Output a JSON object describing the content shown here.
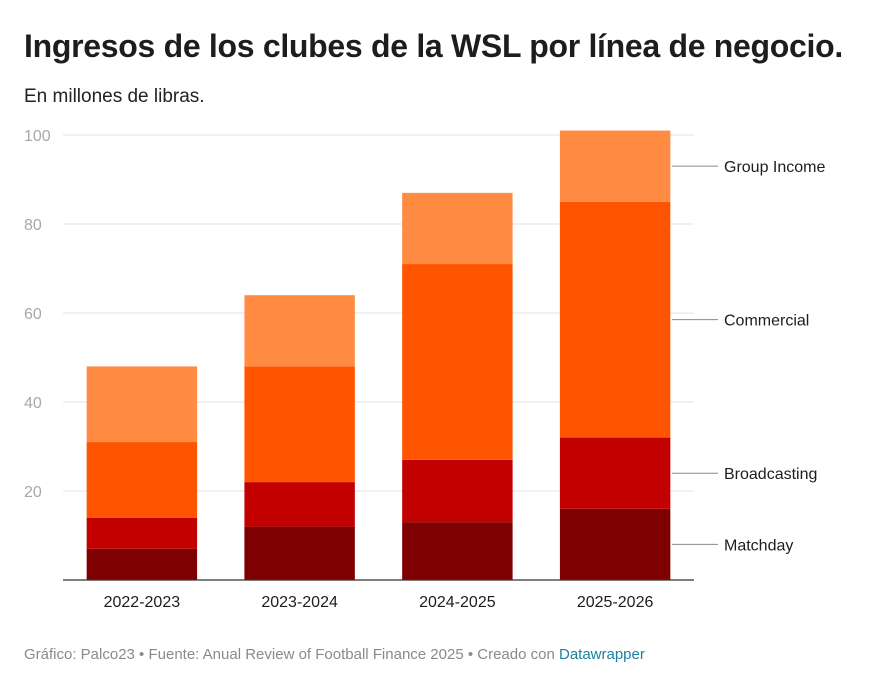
{
  "title": "Ingresos de los clubes de la WSL por línea de negocio.",
  "subtitle": "En millones de libras.",
  "footer": {
    "text": "Gráfico: Palco23 • Fuente: Anual Review of Football Finance 2025 • Creado con ",
    "link_text": "Datawrapper"
  },
  "chart_data": {
    "type": "bar",
    "stacked": true,
    "categories": [
      "2022-2023",
      "2023-2024",
      "2024-2025",
      "2025-2026"
    ],
    "series": [
      {
        "name": "Matchday",
        "color": "#7f0000",
        "values": [
          7,
          12,
          13,
          16
        ]
      },
      {
        "name": "Broadcasting",
        "color": "#c20000",
        "values": [
          7,
          10,
          14,
          16
        ]
      },
      {
        "name": "Commercial",
        "color": "#ff5400",
        "values": [
          17,
          26,
          44,
          53
        ]
      },
      {
        "name": "Group Income",
        "color": "#ff8c42",
        "values": [
          17,
          16,
          16,
          16
        ]
      }
    ],
    "title": "Ingresos de los clubes de la WSL por línea de negocio.",
    "xlabel": "",
    "ylabel": "",
    "ylim": [
      0,
      100
    ],
    "yticks": [
      20,
      40,
      60,
      80,
      100
    ],
    "grid": true,
    "legend": "right, inline labels"
  }
}
